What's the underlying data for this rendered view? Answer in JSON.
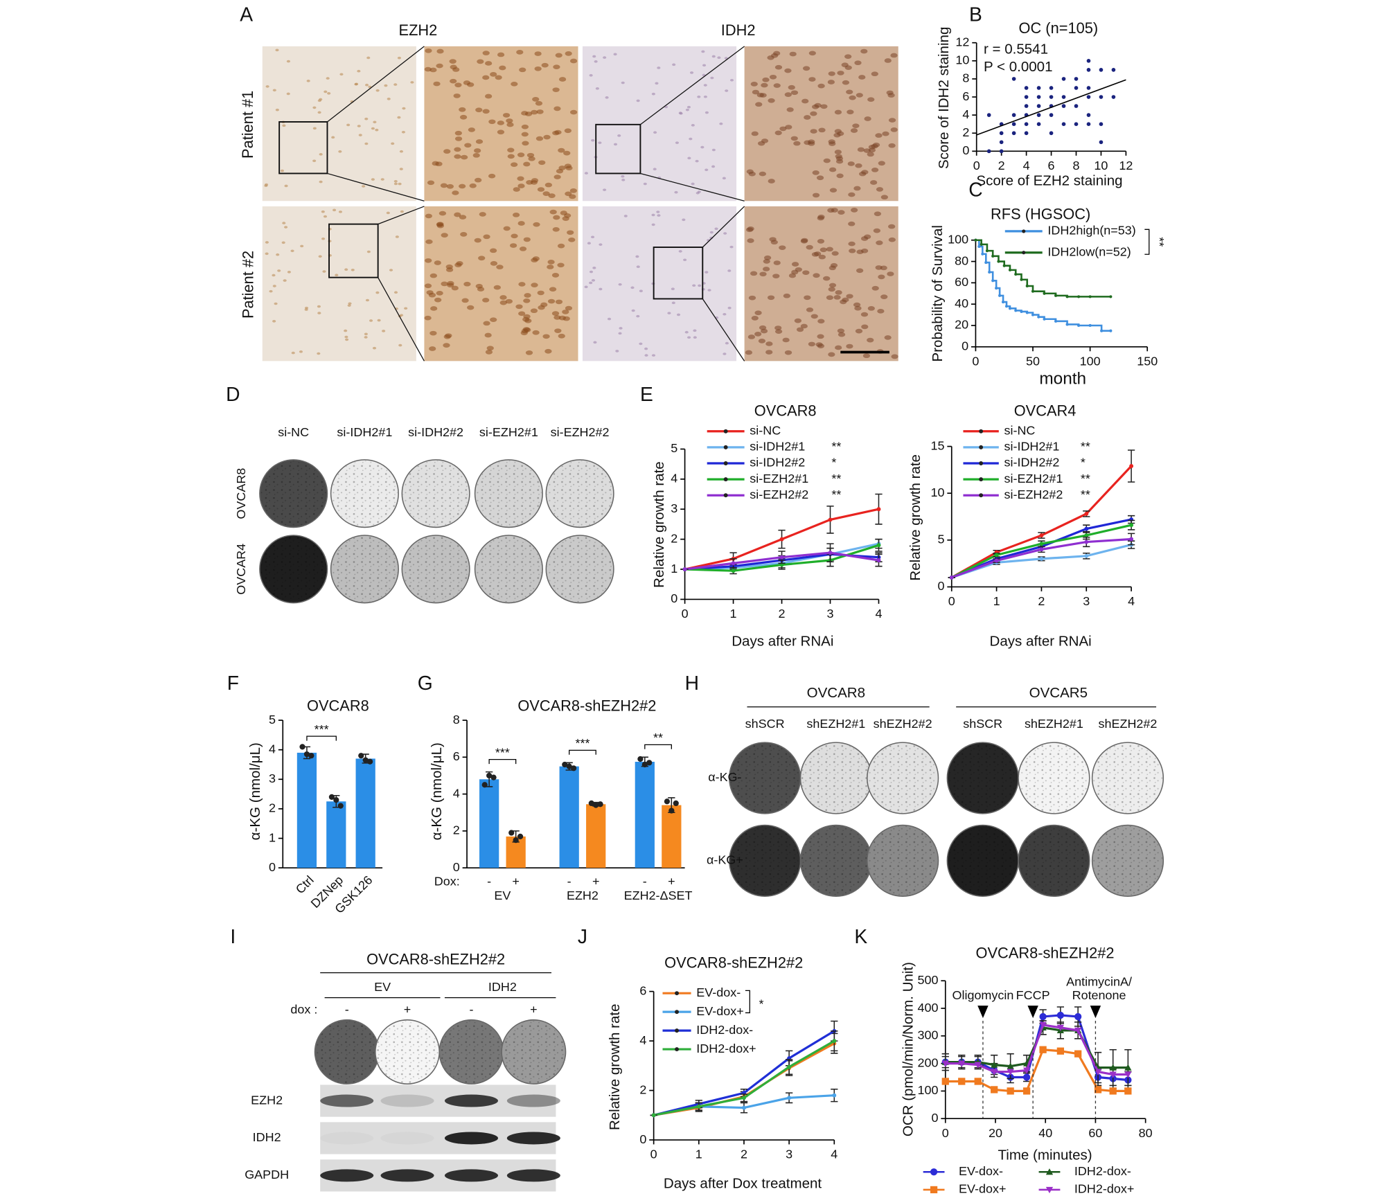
{
  "panel_labels": [
    "A",
    "B",
    "C",
    "D",
    "E",
    "F",
    "G",
    "H",
    "I",
    "J",
    "K"
  ],
  "panel_a": {
    "stains": [
      "EZH2",
      "IDH2"
    ],
    "patients": [
      "Patient #1",
      "Patient #2"
    ]
  },
  "panel_d": {
    "conditions": [
      "si-NC",
      "si-IDH2#1",
      "si-IDH2#2",
      "si-EZH2#1",
      "si-EZH2#2"
    ],
    "cell_lines": [
      "OVCAR8",
      "OVCAR4"
    ]
  },
  "panel_h": {
    "cell_lines": [
      "OVCAR8",
      "OVCAR5"
    ],
    "conditions": [
      "shSCR",
      "shEZH2#1",
      "shEZH2#2"
    ],
    "treatments": [
      "α-KG-",
      "α-KG+"
    ]
  },
  "panel_i": {
    "title": "OVCAR8-shEZH2#2",
    "groups": [
      "EV",
      "IDH2"
    ],
    "dox_label": "dox :",
    "dox": [
      "-",
      "+"
    ],
    "blots": [
      "EZH2",
      "IDH2",
      "GAPDH"
    ]
  },
  "chart_data": [
    {
      "type": "scatter",
      "title": "OC (n=105)",
      "annotations": [
        "r = 0.5541",
        "P < 0.0001"
      ],
      "xlabel": "Score of EZH2 staining",
      "ylabel": "Score of IDH2 staining",
      "color": "#1a237e",
      "x": [
        1,
        1,
        2,
        2,
        2,
        2,
        3,
        3,
        3,
        3,
        4,
        4,
        4,
        4,
        4,
        4,
        5,
        5,
        5,
        5,
        5,
        6,
        6,
        6,
        6,
        6,
        7,
        7,
        7,
        7,
        8,
        8,
        8,
        8,
        9,
        9,
        9,
        9,
        9,
        9,
        10,
        10,
        10,
        10,
        11,
        11
      ],
      "values": [
        0,
        4,
        0,
        1,
        2,
        3,
        2,
        3,
        4,
        8,
        2,
        3,
        4,
        5,
        6,
        7,
        3,
        4,
        5,
        6,
        7,
        2,
        4,
        5,
        6,
        7,
        3,
        5,
        6,
        8,
        3,
        5,
        7,
        8,
        3,
        4,
        6,
        7,
        9,
        10,
        1,
        3,
        6,
        9,
        6,
        9
      ],
      "trendline": {
        "x": [
          0,
          12
        ],
        "values": [
          1.8,
          7.9
        ]
      },
      "xlim": [
        0,
        12
      ],
      "xticks": [
        0,
        2,
        4,
        6,
        8,
        10,
        12
      ],
      "ylim": [
        0,
        12
      ],
      "yticks": [
        0,
        2,
        4,
        6,
        8,
        10,
        12
      ]
    },
    {
      "type": "line",
      "step": true,
      "title": "RFS (HGSOC)",
      "xlabel": "month",
      "ylabel": "Probability of Survival",
      "significance": "**",
      "series": [
        {
          "name": "IDH2high(n=53)",
          "color": "#3f8fdf",
          "x": [
            0,
            3,
            6,
            9,
            12,
            15,
            18,
            21,
            24,
            27,
            30,
            35,
            40,
            45,
            50,
            55,
            60,
            70,
            80,
            90,
            100,
            110,
            118
          ],
          "values": [
            100,
            94,
            87,
            79,
            70,
            62,
            55,
            48,
            42,
            38,
            36,
            34,
            33,
            32,
            30,
            28,
            26,
            24,
            21,
            20,
            20,
            15,
            15
          ]
        },
        {
          "name": "IDH2low(n=52)",
          "color": "#1f6b1f",
          "x": [
            0,
            5,
            10,
            15,
            20,
            25,
            30,
            35,
            40,
            45,
            50,
            60,
            70,
            80,
            90,
            100,
            118
          ],
          "values": [
            100,
            96,
            90,
            85,
            80,
            76,
            72,
            68,
            63,
            57,
            52,
            50,
            48,
            47,
            47,
            47,
            47
          ]
        }
      ],
      "xlim": [
        0,
        150
      ],
      "xticks": [
        0,
        50,
        100,
        150
      ],
      "ylim": [
        0,
        100
      ],
      "yticks": [
        0,
        20,
        40,
        60,
        80,
        100
      ]
    },
    {
      "type": "line",
      "title": "OVCAR8",
      "xlabel": "Days after RNAi",
      "ylabel": "Relative growth rate",
      "x": [
        0,
        1,
        2,
        3,
        4
      ],
      "series": [
        {
          "name": "si-NC",
          "color": "#e8231f",
          "values": [
            1,
            1.35,
            2,
            2.65,
            3.0
          ],
          "errors": [
            0,
            0.2,
            0.3,
            0.45,
            0.5
          ]
        },
        {
          "name": "si-IDH2#1",
          "significance": "**",
          "color": "#6db3ee",
          "values": [
            1,
            1.05,
            1.2,
            1.5,
            1.85
          ],
          "errors": [
            0,
            0.1,
            0.15,
            0.2,
            0.15
          ]
        },
        {
          "name": "si-IDH2#2",
          "significance": "*",
          "color": "#1f27d6",
          "values": [
            1,
            1.1,
            1.3,
            1.5,
            1.4
          ],
          "errors": [
            0,
            0.1,
            0.15,
            0.2,
            0.15
          ]
        },
        {
          "name": "si-EZH2#1",
          "significance": "**",
          "color": "#1fae2a",
          "values": [
            1,
            0.95,
            1.15,
            1.3,
            1.8
          ],
          "errors": [
            0,
            0.1,
            0.15,
            0.2,
            0.2
          ]
        },
        {
          "name": "si-EZH2#2",
          "significance": "**",
          "color": "#8f2fd0",
          "values": [
            1,
            1.2,
            1.4,
            1.55,
            1.3
          ],
          "errors": [
            0,
            0.15,
            0.2,
            0.3,
            0.2
          ]
        }
      ],
      "xlim": [
        0,
        4
      ],
      "xticks": [
        0,
        1,
        2,
        3,
        4
      ],
      "ylim": [
        0,
        5
      ],
      "yticks": [
        0,
        1,
        2,
        3,
        4,
        5
      ]
    },
    {
      "type": "line",
      "title": "OVCAR4",
      "xlabel": "Days after RNAi",
      "ylabel": "Relative growth rate",
      "x": [
        0,
        1,
        2,
        3,
        4
      ],
      "series": [
        {
          "name": "si-NC",
          "color": "#e8231f",
          "values": [
            1,
            3.7,
            5.5,
            7.8,
            12.9
          ],
          "errors": [
            0,
            0.2,
            0.3,
            0.3,
            1.7
          ]
        },
        {
          "name": "si-IDH2#1",
          "significance": "**",
          "color": "#6db3ee",
          "values": [
            1,
            2.6,
            3.0,
            3.3,
            4.5
          ],
          "errors": [
            0,
            0.2,
            0.2,
            0.3,
            0.4
          ]
        },
        {
          "name": "si-IDH2#2",
          "significance": "*",
          "color": "#1f27d6",
          "values": [
            1,
            3.0,
            4.3,
            6.2,
            7.2
          ],
          "errors": [
            0,
            0.2,
            0.3,
            0.4,
            0.4
          ]
        },
        {
          "name": "si-EZH2#1",
          "significance": "**",
          "color": "#1fae2a",
          "values": [
            1,
            3.4,
            4.6,
            5.5,
            6.6
          ],
          "errors": [
            0,
            0.2,
            0.3,
            0.4,
            0.5
          ]
        },
        {
          "name": "si-EZH2#2",
          "significance": "**",
          "color": "#8f2fd0",
          "values": [
            1,
            2.8,
            4.0,
            4.8,
            5.1
          ],
          "errors": [
            0,
            0.2,
            0.3,
            0.5,
            0.6
          ]
        }
      ],
      "xlim": [
        0,
        4
      ],
      "xticks": [
        0,
        1,
        2,
        3,
        4
      ],
      "ylim": [
        0,
        15
      ],
      "yticks": [
        0,
        5,
        10,
        15
      ]
    },
    {
      "type": "bar",
      "title": "OVCAR8",
      "ylabel": "α-KG (nmol/μL)",
      "significance": "***",
      "color": "#2b8ee6",
      "categories": [
        "Ctrl",
        "DZNep",
        "GSK126"
      ],
      "values": [
        3.9,
        2.25,
        3.7
      ],
      "errors": [
        0.2,
        0.2,
        0.15
      ],
      "points": [
        [
          4.1,
          3.85,
          3.8
        ],
        [
          2.4,
          2.3,
          2.1
        ],
        [
          3.8,
          3.65,
          3.6
        ]
      ],
      "ylim": [
        0,
        5
      ],
      "yticks": [
        0,
        1,
        2,
        3,
        4,
        5
      ]
    },
    {
      "type": "grouped-bar",
      "title": "OVCAR8-shEZH2#2",
      "ylabel": "α-KG (nmol/μL)",
      "group_label": "Dox:",
      "significance": [
        "***",
        "***",
        "**"
      ],
      "categories": [
        "EV",
        "EZH2",
        "EZH2-ΔSET"
      ],
      "series": [
        {
          "name": "-",
          "color": "#2b8ee6",
          "values": [
            4.8,
            5.5,
            5.75
          ],
          "errors": [
            0.4,
            0.2,
            0.25
          ],
          "points": [
            [
              4.5,
              5.0,
              4.9
            ],
            [
              5.6,
              5.5,
              5.4
            ],
            [
              5.9,
              5.6,
              5.7
            ]
          ]
        },
        {
          "name": "+",
          "color": "#f5891f",
          "values": [
            1.7,
            3.45,
            3.4
          ],
          "errors": [
            0.3,
            0.1,
            0.4
          ],
          "points": [
            [
              1.9,
              1.5,
              1.7
            ],
            [
              3.5,
              3.4,
              3.45
            ],
            [
              3.6,
              3.1,
              3.5
            ]
          ]
        }
      ],
      "ylim": [
        0,
        8
      ],
      "yticks": [
        0,
        2,
        4,
        6,
        8
      ]
    },
    {
      "type": "line",
      "title": "OVCAR8-shEZH2#2",
      "xlabel": "Days after Dox treatment",
      "ylabel": "Relative growth rate",
      "significance": "*",
      "x": [
        0,
        1,
        2,
        3,
        4
      ],
      "series": [
        {
          "name": "EV-dox-",
          "color": "#f07a1f",
          "values": [
            1,
            1.3,
            1.75,
            2.9,
            3.9
          ],
          "errors": [
            0,
            0.15,
            0.2,
            0.3,
            0.4
          ]
        },
        {
          "name": "EV-dox+",
          "color": "#4aa3e8",
          "values": [
            1,
            1.35,
            1.3,
            1.7,
            1.8
          ],
          "errors": [
            0,
            0.15,
            0.2,
            0.2,
            0.25
          ]
        },
        {
          "name": "IDH2-dox-",
          "color": "#1f2fd6",
          "values": [
            1,
            1.45,
            1.9,
            3.3,
            4.4
          ],
          "errors": [
            0,
            0.15,
            0.15,
            0.3,
            0.4
          ]
        },
        {
          "name": "IDH2-dox+",
          "color": "#2fae3a",
          "values": [
            1,
            1.35,
            1.7,
            2.95,
            4.0
          ],
          "errors": [
            0,
            0.15,
            0.15,
            0.3,
            0.4
          ]
        }
      ],
      "xlim": [
        0,
        4
      ],
      "xticks": [
        0,
        1,
        2,
        3,
        4
      ],
      "ylim": [
        0,
        6
      ],
      "yticks": [
        0,
        2,
        4,
        6
      ]
    },
    {
      "type": "line",
      "title": "OVCAR8-shEZH2#2",
      "xlabel": "Time (minutes)",
      "ylabel": "OCR (pmol/min/Norm. Unit)",
      "x": [
        0,
        6.5,
        13,
        19.5,
        26,
        32.5,
        39,
        46,
        53,
        61,
        67,
        73
      ],
      "injections": [
        {
          "x": 15,
          "label_lines": [
            "Oligomycin"
          ]
        },
        {
          "x": 35,
          "label_lines": [
            "FCCP"
          ]
        },
        {
          "x": 60,
          "label_lines": [
            "AntimycinA/",
            "Rotenone"
          ]
        }
      ],
      "series": [
        {
          "name": "EV-dox-",
          "color": "#2c2cd6",
          "marker": "circle",
          "values": [
            205,
            205,
            205,
            175,
            150,
            150,
            370,
            375,
            370,
            150,
            145,
            140
          ],
          "errors": [
            20,
            20,
            20,
            25,
            20,
            15,
            25,
            30,
            35,
            30,
            35,
            30
          ]
        },
        {
          "name": "EV-dox+",
          "color": "#f07a1f",
          "marker": "square",
          "values": [
            135,
            135,
            135,
            105,
            100,
            100,
            250,
            245,
            235,
            105,
            100,
            100
          ]
        },
        {
          "name": "IDH2-dox-",
          "color": "#1f5a1f",
          "marker": "triangle",
          "values": [
            205,
            205,
            205,
            195,
            190,
            200,
            330,
            320,
            320,
            185,
            185,
            185
          ],
          "errors": [
            30,
            25,
            25,
            35,
            45,
            30,
            25,
            30,
            30,
            55,
            65,
            65
          ]
        },
        {
          "name": "IDH2-dox+",
          "color": "#9b30c8",
          "marker": "triangle-down",
          "values": [
            200,
            200,
            195,
            170,
            170,
            175,
            340,
            330,
            320,
            170,
            160,
            160
          ]
        }
      ],
      "xlim": [
        0,
        80
      ],
      "xticks": [
        0,
        20,
        40,
        60,
        80
      ],
      "ylim": [
        0,
        500
      ],
      "yticks": [
        0,
        100,
        200,
        300,
        400,
        500
      ]
    }
  ]
}
